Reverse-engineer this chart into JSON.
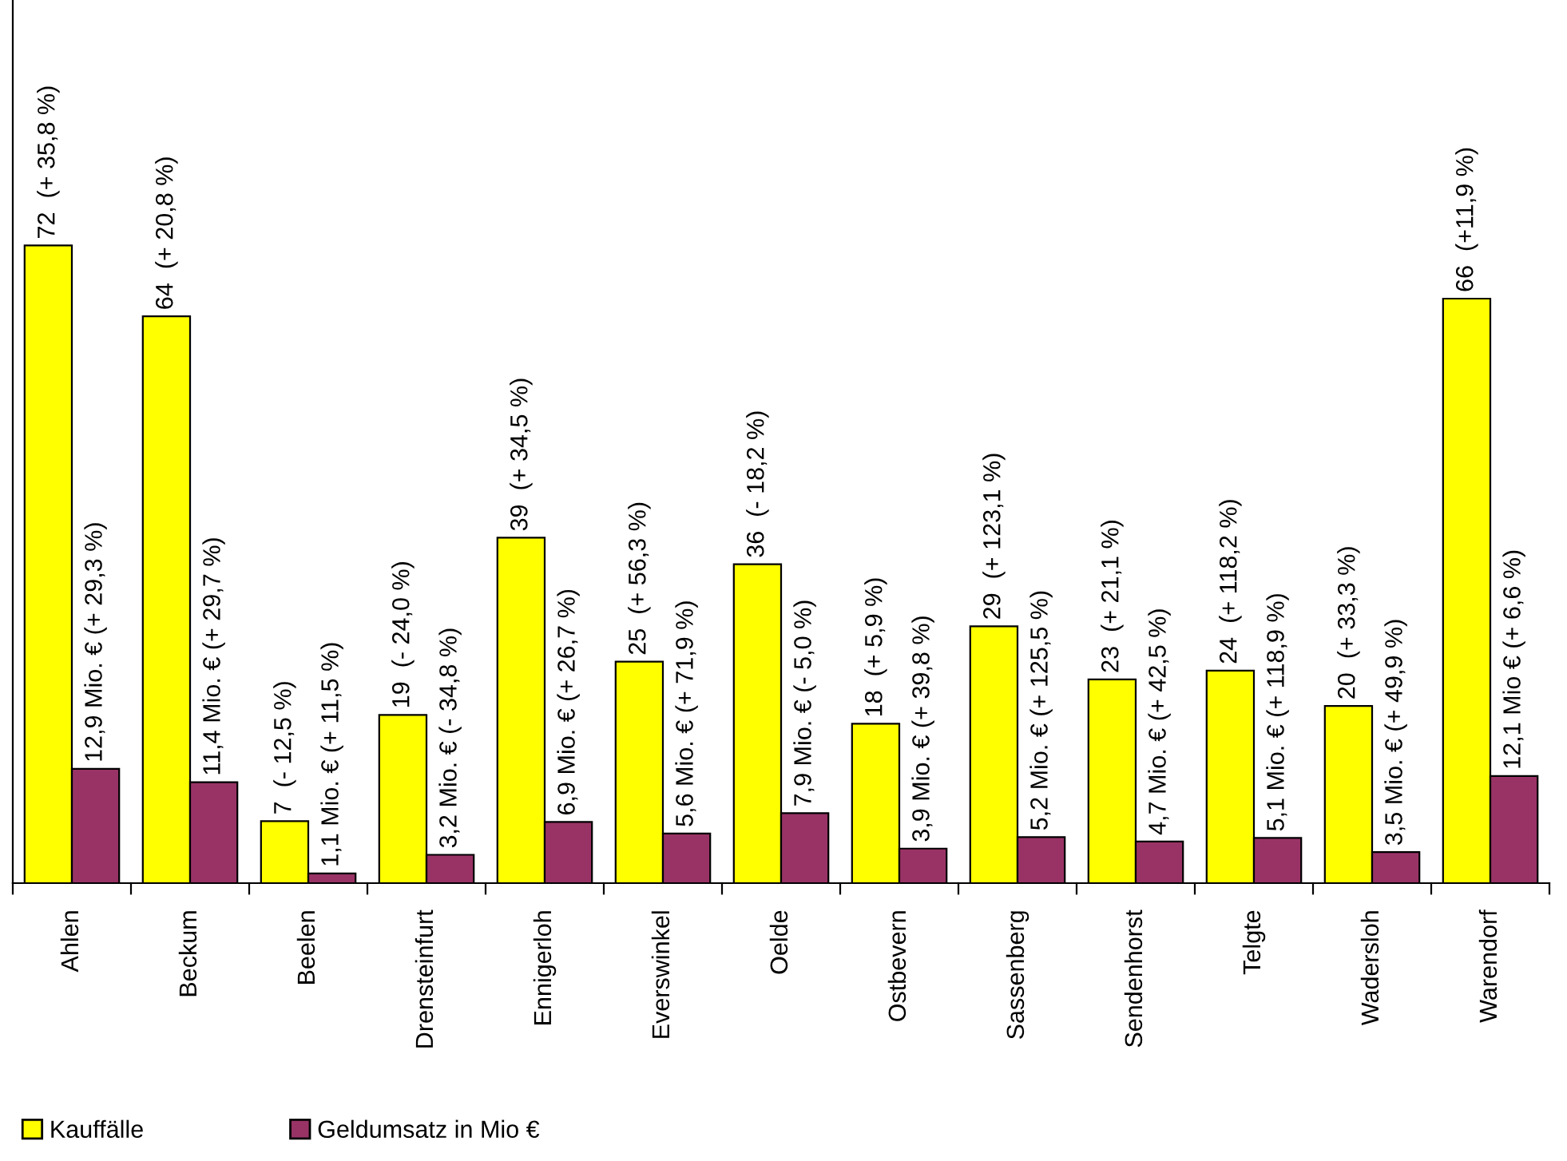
{
  "chart_data": {
    "type": "bar",
    "categories": [
      "Ahlen",
      "Beckum",
      "Beelen",
      "Drensteinfurt",
      "Ennigerloh",
      "Everswinkel",
      "Oelde",
      "Ostbevern",
      "Sassenberg",
      "Sendenhorst",
      "Telgte",
      "Wadersloh",
      "Warendorf"
    ],
    "series": [
      {
        "name": "Kauffälle",
        "color": "#ffff00",
        "values": [
          72,
          64,
          7,
          19,
          39,
          25,
          36,
          18,
          29,
          23,
          24,
          20,
          66
        ],
        "value_labels": [
          "72  (+ 35,8 %)",
          "64  (+ 20,8 %)",
          "7  (- 12,5 %)",
          "19  (- 24,0 %)",
          "39  (+ 34,5 %)",
          "25  (+ 56,3 %)",
          "36  (- 18,2 %)",
          "18  (+ 5,9 %)",
          "29  (+ 123,1 %)",
          "23  (+ 21,1 %)",
          "24  (+ 118,2 %)",
          "20  (+ 33,3 %)",
          "66  (+11,9 %)"
        ]
      },
      {
        "name": "Geldumsatz in Mio €",
        "color": "#993366",
        "values": [
          12.9,
          11.4,
          1.1,
          3.2,
          6.9,
          5.6,
          7.9,
          3.9,
          5.2,
          4.7,
          5.1,
          3.5,
          12.1
        ],
        "value_labels": [
          "12,9 Mio. € (+ 29,3 %)",
          "11,4 Mio. € (+ 29,7 %)",
          "1,1 Mio. € (+ 11,5 %)",
          "3,2 Mio. € (- 34,8 %)",
          "6,9 Mio. € (+ 26,7 %)",
          "5,6 Mio. € (+ 71,9 %)",
          "7,9 Mio. € (- 5,0 %)",
          "3,9 Mio. € (+ 39,8 %)",
          "5,2 Mio. € (+ 125,5 %)",
          "4,7 Mio. € (+ 42,5 %)",
          "5,1 Mio. € (+ 118,9 %)",
          "3,5 Mio. € (+ 49,9 %)",
          "12,1 Mio € (+ 6,6 %)"
        ]
      }
    ],
    "grid": false,
    "legend": "bottom left",
    "tick_labels": "x"
  }
}
